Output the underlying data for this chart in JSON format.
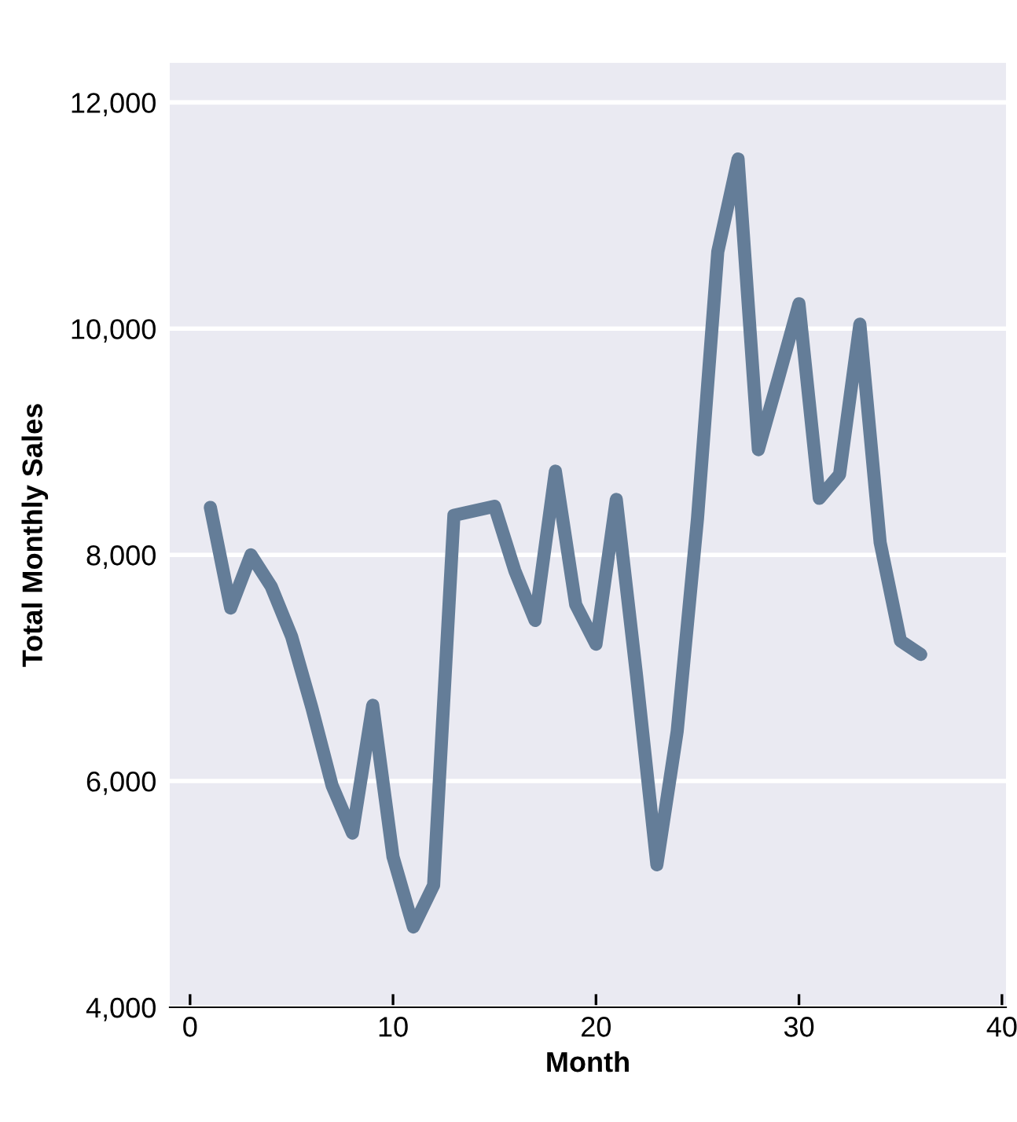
{
  "chart_data": {
    "type": "line",
    "xlabel": "Month",
    "ylabel": "Total Monthly Sales",
    "x": [
      1,
      2,
      3,
      4,
      5,
      6,
      7,
      8,
      9,
      10,
      11,
      12,
      13,
      14,
      15,
      16,
      17,
      18,
      19,
      20,
      21,
      22,
      23,
      24,
      25,
      26,
      27,
      28,
      29,
      30,
      31,
      32,
      33,
      34,
      35,
      36
    ],
    "series": [
      {
        "color": "#647d98",
        "values": [
          8420,
          7530,
          8000,
          7720,
          7280,
          6650,
          5960,
          5540,
          6670,
          5330,
          4710,
          5080,
          8350,
          8390,
          8430,
          7860,
          7420,
          8740,
          7560,
          7210,
          8490,
          6930,
          5260,
          6440,
          8320,
          10680,
          11500,
          8930,
          9570,
          10220,
          8500,
          8710,
          10040,
          8110,
          7240,
          7120
        ]
      }
    ],
    "xlim": [
      -1,
      40.2
    ],
    "xticks": [
      0,
      10,
      20,
      30,
      40
    ],
    "ylim": [
      4000,
      12350
    ],
    "yticks": [
      {
        "value": 4000,
        "label": "4,000"
      },
      {
        "value": 6000,
        "label": "6,000"
      },
      {
        "value": 8000,
        "label": "8,000"
      },
      {
        "value": 10000,
        "label": "10,000"
      },
      {
        "value": 12000,
        "label": "12,000"
      }
    ],
    "grid": "y",
    "marker": "none",
    "line_style": "solid",
    "legend": false
  }
}
